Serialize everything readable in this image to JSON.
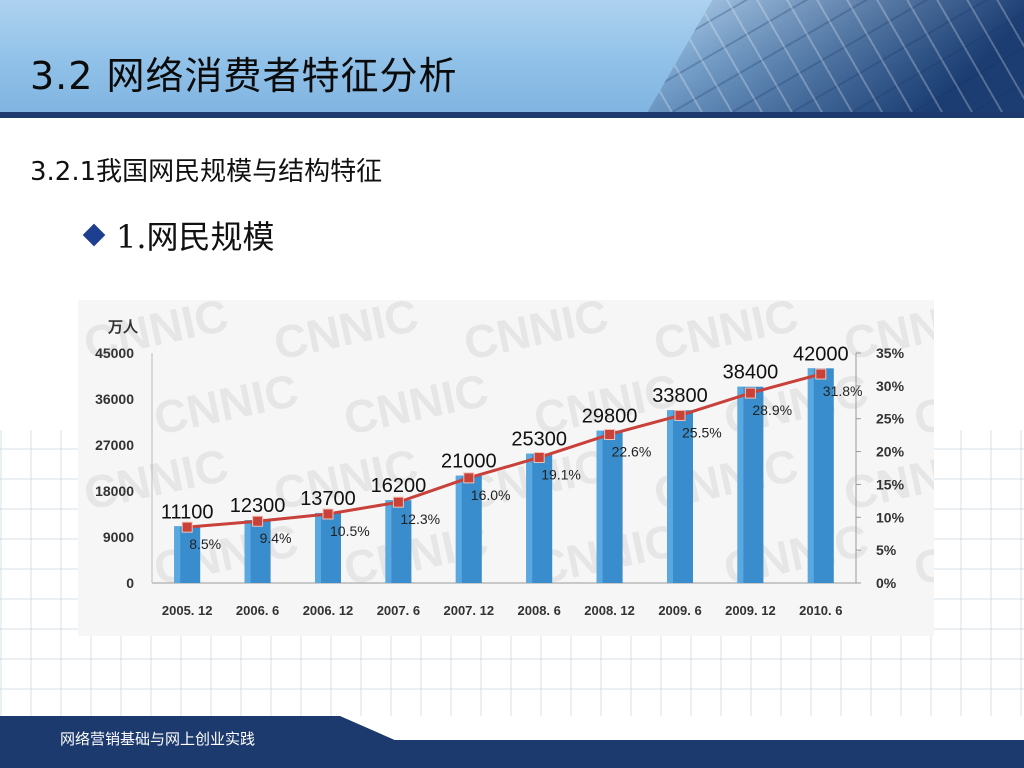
{
  "slide": {
    "title": "3.2 网络消费者特征分析",
    "subtitle": "3.2.1我国网民规模与结构特征",
    "bullet": "1.网民规模",
    "footer": "网络营销基础与网上创业实践"
  },
  "chart_data": {
    "type": "bar",
    "title": "",
    "y_unit_label": "万人",
    "categories": [
      "2005. 12",
      "2006. 6",
      "2006. 12",
      "2007. 6",
      "2007. 12",
      "2008. 6",
      "2008. 12",
      "2009. 6",
      "2009. 12",
      "2010. 6"
    ],
    "series": [
      {
        "type": "bar",
        "values": [
          11100,
          12300,
          13700,
          16200,
          21000,
          25300,
          29800,
          33800,
          38400,
          42000
        ],
        "color": "#3a8dcc",
        "axis": "left"
      },
      {
        "type": "line",
        "values": [
          8.5,
          9.4,
          10.5,
          12.3,
          16.0,
          19.1,
          22.6,
          25.5,
          28.9,
          31.8
        ],
        "labels": [
          "8.5%",
          "9.4%",
          "10.5%",
          "12.3%",
          "16.0%",
          "19.1%",
          "22.6%",
          "25.5%",
          "28.9%",
          "31.8%"
        ],
        "color": "#c8413a",
        "axis": "right"
      }
    ],
    "ylim": [
      0,
      45000
    ],
    "y_ticks": [
      "0",
      "9000",
      "18000",
      "27000",
      "36000",
      "45000"
    ],
    "y2lim": [
      0,
      35
    ],
    "y2_ticks": [
      "0%",
      "5%",
      "10%",
      "15%",
      "20%",
      "25%",
      "30%",
      "35%"
    ],
    "grid": false,
    "watermark": "CNNIC"
  }
}
